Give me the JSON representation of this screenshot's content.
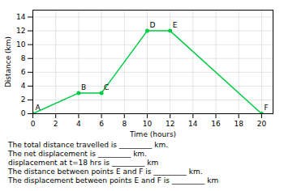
{
  "chart_data": {
    "type": "line",
    "x": [
      0,
      4,
      6,
      10,
      12,
      20
    ],
    "values": [
      0,
      3,
      3,
      12,
      12,
      0
    ],
    "point_labels": [
      "A",
      "B",
      "C",
      "D",
      "E",
      "F"
    ],
    "color": "#00cc44",
    "marker": "circle",
    "xlabel": "Time (hours)",
    "ylabel": "Distance (km)",
    "xlim": [
      0,
      21
    ],
    "ylim": [
      0,
      15
    ],
    "xticks": [
      0,
      2,
      4,
      6,
      8,
      10,
      12,
      14,
      16,
      18,
      20
    ],
    "yticks": [
      0,
      2,
      4,
      6,
      8,
      10,
      12,
      14
    ],
    "grid": true,
    "annotations": [
      "The total distance travelled is _________ km.",
      "The net displacement is _________ km.",
      "displacement at t=18 hrs is _________ km",
      "The distance between points E and F is _________ km.",
      "The displacement between points E and F is _________ km"
    ]
  }
}
